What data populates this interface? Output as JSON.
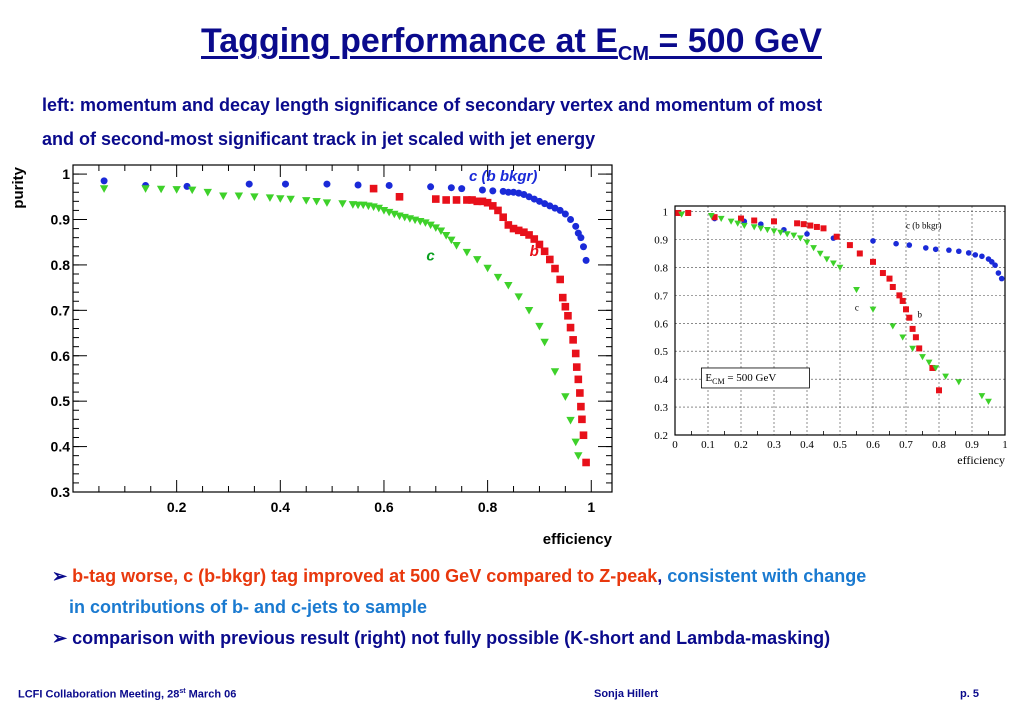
{
  "slide": {
    "title_main": "Tagging performance at E",
    "title_sub": "CM",
    "title_end": " = 500 GeV",
    "subtitle_line1": "left: momentum and decay length significance of secondary vertex and momentum of most",
    "subtitle_line2": "and of second-most significant track in jet scaled with jet energy",
    "bullet1_arrow": "➢",
    "bullet1_red": "b-tag worse, c (b-bkgr) tag improved at 500 GeV compared to Z-peak",
    "bullet1_comma": ",",
    "bullet1_blue": " consistent with change",
    "bullet1_blue_line2": "in contributions of b- and c-jets to sample",
    "bullet2_arrow": "➢",
    "bullet2_text": "comparison with previous result (right) not fully possible (K-short and Lambda-masking)",
    "footer_left": "LCFI Collaboration Meeting, 28",
    "footer_left_sup": "st",
    "footer_left_end": " March 06",
    "footer_center": "Sonja Hillert",
    "footer_right": "p. 5"
  },
  "colors": {
    "title": "#0a0a8c",
    "b_series": "#e8101a",
    "c_series": "#1a2ad8",
    "c_bkgr_series": "#3ed12a",
    "highlight_red": "#e8380d",
    "highlight_blue": "#1a7ad0"
  },
  "chart_data": [
    {
      "type": "scatter",
      "xlabel": "efficiency",
      "ylabel": "purity",
      "xlim": [
        0,
        1.04
      ],
      "ylim": [
        0.3,
        1.02
      ],
      "x_ticks": [
        "0.2",
        "0.4",
        "0.6",
        "0.8",
        "1"
      ],
      "y_ticks": [
        "0.3",
        "0.4",
        "0.5",
        "0.6",
        "0.7",
        "0.8",
        "0.9",
        "1"
      ],
      "grid": false,
      "series": [
        {
          "name": "c (b bkgr)",
          "marker": "circle",
          "color": "#1a2ad8",
          "points": [
            [
              0.06,
              0.985
            ],
            [
              0.14,
              0.975
            ],
            [
              0.22,
              0.973
            ],
            [
              0.34,
              0.978
            ],
            [
              0.41,
              0.978
            ],
            [
              0.49,
              0.978
            ],
            [
              0.55,
              0.976
            ],
            [
              0.61,
              0.975
            ],
            [
              0.69,
              0.972
            ],
            [
              0.73,
              0.97
            ],
            [
              0.75,
              0.968
            ],
            [
              0.79,
              0.965
            ],
            [
              0.81,
              0.963
            ],
            [
              0.83,
              0.962
            ],
            [
              0.84,
              0.96
            ],
            [
              0.85,
              0.96
            ],
            [
              0.86,
              0.958
            ],
            [
              0.87,
              0.955
            ],
            [
              0.88,
              0.95
            ],
            [
              0.89,
              0.945
            ],
            [
              0.9,
              0.94
            ],
            [
              0.91,
              0.935
            ],
            [
              0.92,
              0.93
            ],
            [
              0.93,
              0.925
            ],
            [
              0.94,
              0.92
            ],
            [
              0.95,
              0.912
            ],
            [
              0.96,
              0.9
            ],
            [
              0.97,
              0.885
            ],
            [
              0.975,
              0.87
            ],
            [
              0.98,
              0.86
            ],
            [
              0.985,
              0.84
            ],
            [
              0.99,
              0.81
            ]
          ]
        },
        {
          "name": "b",
          "marker": "square",
          "color": "#e8101a",
          "points": [
            [
              0.58,
              0.968
            ],
            [
              0.63,
              0.95
            ],
            [
              0.7,
              0.945
            ],
            [
              0.72,
              0.943
            ],
            [
              0.74,
              0.943
            ],
            [
              0.76,
              0.943
            ],
            [
              0.77,
              0.943
            ],
            [
              0.78,
              0.94
            ],
            [
              0.79,
              0.94
            ],
            [
              0.8,
              0.937
            ],
            [
              0.81,
              0.93
            ],
            [
              0.82,
              0.92
            ],
            [
              0.83,
              0.905
            ],
            [
              0.84,
              0.888
            ],
            [
              0.85,
              0.88
            ],
            [
              0.86,
              0.876
            ],
            [
              0.87,
              0.872
            ],
            [
              0.88,
              0.866
            ],
            [
              0.89,
              0.857
            ],
            [
              0.9,
              0.845
            ],
            [
              0.91,
              0.83
            ],
            [
              0.92,
              0.812
            ],
            [
              0.93,
              0.792
            ],
            [
              0.94,
              0.768
            ],
            [
              0.945,
              0.728
            ],
            [
              0.95,
              0.708
            ],
            [
              0.955,
              0.688
            ],
            [
              0.96,
              0.662
            ],
            [
              0.965,
              0.635
            ],
            [
              0.97,
              0.605
            ],
            [
              0.972,
              0.575
            ],
            [
              0.975,
              0.548
            ],
            [
              0.978,
              0.518
            ],
            [
              0.98,
              0.488
            ],
            [
              0.982,
              0.46
            ],
            [
              0.985,
              0.425
            ],
            [
              0.99,
              0.365
            ]
          ]
        },
        {
          "name": "c",
          "marker": "triangle-down",
          "color": "#3ed12a",
          "points": [
            [
              0.06,
              0.968
            ],
            [
              0.14,
              0.968
            ],
            [
              0.17,
              0.967
            ],
            [
              0.2,
              0.966
            ],
            [
              0.23,
              0.965
            ],
            [
              0.26,
              0.96
            ],
            [
              0.29,
              0.952
            ],
            [
              0.32,
              0.952
            ],
            [
              0.35,
              0.95
            ],
            [
              0.38,
              0.948
            ],
            [
              0.4,
              0.946
            ],
            [
              0.42,
              0.945
            ],
            [
              0.45,
              0.942
            ],
            [
              0.47,
              0.94
            ],
            [
              0.49,
              0.937
            ],
            [
              0.52,
              0.935
            ],
            [
              0.54,
              0.933
            ],
            [
              0.55,
              0.932
            ],
            [
              0.56,
              0.932
            ],
            [
              0.57,
              0.93
            ],
            [
              0.58,
              0.928
            ],
            [
              0.59,
              0.925
            ],
            [
              0.6,
              0.92
            ],
            [
              0.61,
              0.916
            ],
            [
              0.62,
              0.912
            ],
            [
              0.63,
              0.908
            ],
            [
              0.64,
              0.905
            ],
            [
              0.65,
              0.902
            ],
            [
              0.66,
              0.899
            ],
            [
              0.67,
              0.896
            ],
            [
              0.68,
              0.893
            ],
            [
              0.69,
              0.888
            ],
            [
              0.7,
              0.882
            ],
            [
              0.71,
              0.875
            ],
            [
              0.72,
              0.865
            ],
            [
              0.73,
              0.855
            ],
            [
              0.74,
              0.843
            ],
            [
              0.76,
              0.828
            ],
            [
              0.78,
              0.812
            ],
            [
              0.8,
              0.793
            ],
            [
              0.82,
              0.773
            ],
            [
              0.84,
              0.755
            ],
            [
              0.86,
              0.73
            ],
            [
              0.88,
              0.7
            ],
            [
              0.9,
              0.665
            ],
            [
              0.91,
              0.63
            ],
            [
              0.93,
              0.565
            ],
            [
              0.95,
              0.51
            ],
            [
              0.96,
              0.458
            ],
            [
              0.97,
              0.41
            ],
            [
              0.975,
              0.38
            ]
          ]
        }
      ],
      "annotations": [
        {
          "text": "c (b bkgr)",
          "color": "#1a2ad8",
          "x": 0.83,
          "y": 0.985
        },
        {
          "text": "b",
          "color": "#e8101a",
          "x": 0.89,
          "y": 0.82
        },
        {
          "text": "c",
          "color": "#0aa020",
          "x": 0.69,
          "y": 0.81
        }
      ]
    },
    {
      "type": "scatter",
      "xlabel": "efficiency",
      "ylabel": "",
      "xlim": [
        0,
        1
      ],
      "ylim": [
        0.2,
        1.02
      ],
      "x_ticks": [
        "0",
        "0.1",
        "0.2",
        "0.3",
        "0.4",
        "0.5",
        "0.6",
        "0.7",
        "0.8",
        "0.9",
        "1"
      ],
      "y_ticks": [
        "0.2",
        "0.3",
        "0.4",
        "0.5",
        "0.6",
        "0.7",
        "0.8",
        "0.9",
        "1"
      ],
      "grid": true,
      "annotation": "E_CM = 500 GeV",
      "annotation_main": "E",
      "annotation_sub": "CM",
      "annotation_end": " = 500 GeV",
      "series": [
        {
          "name": "c (b bkgr)",
          "marker": "circle",
          "color": "#1a2ad8",
          "points": [
            [
              0.01,
              0.995
            ],
            [
              0.12,
              0.975
            ],
            [
              0.21,
              0.965
            ],
            [
              0.26,
              0.955
            ],
            [
              0.33,
              0.935
            ],
            [
              0.4,
              0.92
            ],
            [
              0.48,
              0.905
            ],
            [
              0.6,
              0.895
            ],
            [
              0.67,
              0.885
            ],
            [
              0.71,
              0.88
            ],
            [
              0.76,
              0.87
            ],
            [
              0.79,
              0.865
            ],
            [
              0.83,
              0.862
            ],
            [
              0.86,
              0.858
            ],
            [
              0.89,
              0.852
            ],
            [
              0.91,
              0.845
            ],
            [
              0.93,
              0.84
            ],
            [
              0.95,
              0.83
            ],
            [
              0.96,
              0.82
            ],
            [
              0.97,
              0.808
            ],
            [
              0.98,
              0.78
            ],
            [
              0.99,
              0.76
            ]
          ]
        },
        {
          "name": "b",
          "marker": "square",
          "color": "#e8101a",
          "points": [
            [
              0.01,
              0.995
            ],
            [
              0.04,
              0.995
            ],
            [
              0.12,
              0.98
            ],
            [
              0.2,
              0.975
            ],
            [
              0.24,
              0.968
            ],
            [
              0.3,
              0.965
            ],
            [
              0.37,
              0.958
            ],
            [
              0.39,
              0.955
            ],
            [
              0.41,
              0.95
            ],
            [
              0.43,
              0.945
            ],
            [
              0.45,
              0.94
            ],
            [
              0.49,
              0.91
            ],
            [
              0.53,
              0.88
            ],
            [
              0.56,
              0.85
            ],
            [
              0.6,
              0.82
            ],
            [
              0.63,
              0.78
            ],
            [
              0.65,
              0.76
            ],
            [
              0.66,
              0.73
            ],
            [
              0.68,
              0.7
            ],
            [
              0.69,
              0.68
            ],
            [
              0.7,
              0.65
            ],
            [
              0.71,
              0.62
            ],
            [
              0.72,
              0.58
            ],
            [
              0.73,
              0.55
            ],
            [
              0.74,
              0.51
            ],
            [
              0.78,
              0.44
            ],
            [
              0.8,
              0.36
            ]
          ]
        },
        {
          "name": "c",
          "marker": "triangle-down",
          "color": "#3ed12a",
          "points": [
            [
              0.02,
              0.99
            ],
            [
              0.11,
              0.985
            ],
            [
              0.14,
              0.975
            ],
            [
              0.17,
              0.965
            ],
            [
              0.19,
              0.958
            ],
            [
              0.21,
              0.95
            ],
            [
              0.24,
              0.945
            ],
            [
              0.26,
              0.94
            ],
            [
              0.28,
              0.935
            ],
            [
              0.3,
              0.93
            ],
            [
              0.32,
              0.925
            ],
            [
              0.34,
              0.92
            ],
            [
              0.36,
              0.915
            ],
            [
              0.38,
              0.905
            ],
            [
              0.4,
              0.89
            ],
            [
              0.42,
              0.87
            ],
            [
              0.44,
              0.85
            ],
            [
              0.46,
              0.83
            ],
            [
              0.48,
              0.815
            ],
            [
              0.5,
              0.8
            ],
            [
              0.55,
              0.72
            ],
            [
              0.6,
              0.65
            ],
            [
              0.66,
              0.59
            ],
            [
              0.69,
              0.55
            ],
            [
              0.72,
              0.51
            ],
            [
              0.75,
              0.48
            ],
            [
              0.77,
              0.46
            ],
            [
              0.79,
              0.44
            ],
            [
              0.82,
              0.41
            ],
            [
              0.86,
              0.39
            ],
            [
              0.93,
              0.34
            ],
            [
              0.95,
              0.32
            ]
          ]
        }
      ],
      "labels": [
        {
          "text": "c (b bkgr)",
          "x": 0.7,
          "y": 0.94
        },
        {
          "text": "c",
          "x": 0.545,
          "y": 0.645
        },
        {
          "text": "b",
          "x": 0.735,
          "y": 0.62
        }
      ]
    }
  ]
}
